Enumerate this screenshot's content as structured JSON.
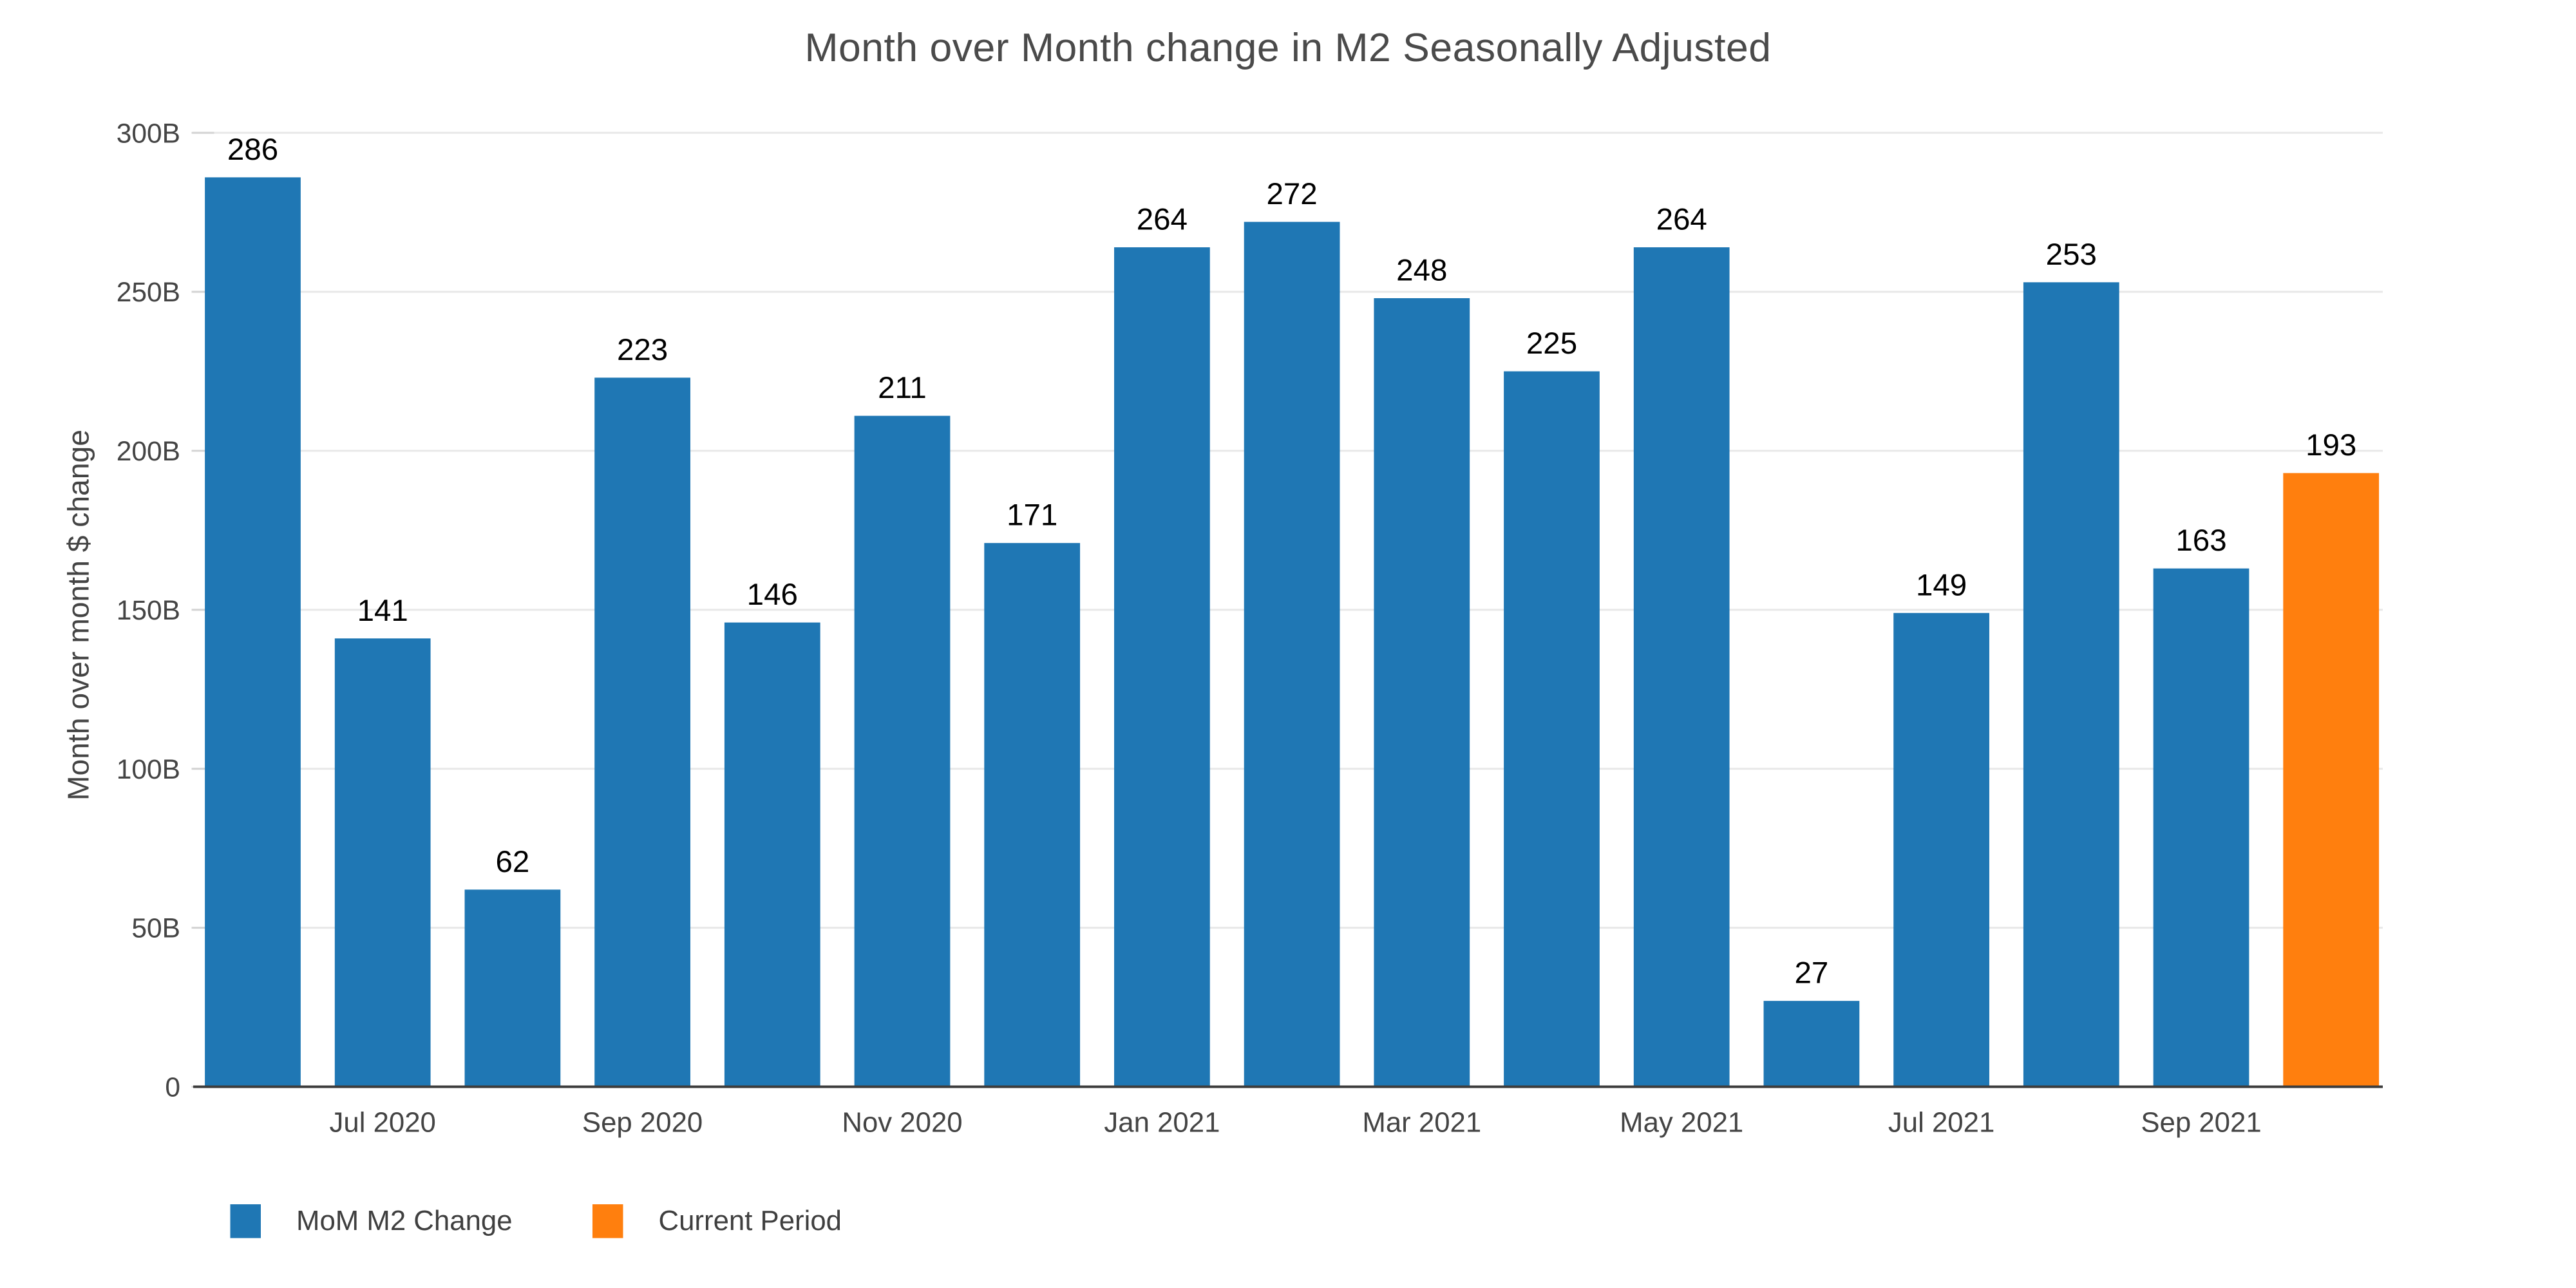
{
  "chart_data": {
    "type": "bar",
    "title": "Month over Month change in M2 Seasonally Adjusted",
    "ylabel": "Month over month $ change",
    "xlabel": "",
    "ylim": [
      0,
      300
    ],
    "grid": true,
    "legend_position": "bottom-left",
    "y_ticks": [
      {
        "value": 0,
        "label": "0"
      },
      {
        "value": 50,
        "label": "50B"
      },
      {
        "value": 100,
        "label": "100B"
      },
      {
        "value": 150,
        "label": "150B"
      },
      {
        "value": 200,
        "label": "200B"
      },
      {
        "value": 250,
        "label": "250B"
      },
      {
        "value": 300,
        "label": "300B"
      }
    ],
    "bars": [
      {
        "value": 286,
        "label": "286",
        "role": "default"
      },
      {
        "value": 141,
        "label": "141",
        "role": "default"
      },
      {
        "value": 62,
        "label": "62",
        "role": "default"
      },
      {
        "value": 223,
        "label": "223",
        "role": "default"
      },
      {
        "value": 146,
        "label": "146",
        "role": "default"
      },
      {
        "value": 211,
        "label": "211",
        "role": "default"
      },
      {
        "value": 171,
        "label": "171",
        "role": "default"
      },
      {
        "value": 264,
        "label": "264",
        "role": "default"
      },
      {
        "value": 272,
        "label": "272",
        "role": "default"
      },
      {
        "value": 248,
        "label": "248",
        "role": "default"
      },
      {
        "value": 225,
        "label": "225",
        "role": "default"
      },
      {
        "value": 264,
        "label": "264",
        "role": "default"
      },
      {
        "value": 27,
        "label": "27",
        "role": "default"
      },
      {
        "value": 149,
        "label": "149",
        "role": "default"
      },
      {
        "value": 253,
        "label": "253",
        "role": "default"
      },
      {
        "value": 163,
        "label": "163",
        "role": "default"
      },
      {
        "value": 193,
        "label": "193",
        "role": "current"
      }
    ],
    "current_period_index": 16,
    "x_ticks": [
      {
        "label": "Jul 2020",
        "bar_index": 1
      },
      {
        "label": "Sep 2020",
        "bar_index": 3
      },
      {
        "label": "Nov 2020",
        "bar_index": 5
      },
      {
        "label": "Jan 2021",
        "bar_index": 7
      },
      {
        "label": "Mar 2021",
        "bar_index": 9
      },
      {
        "label": "May 2021",
        "bar_index": 11
      },
      {
        "label": "Jul 2021",
        "bar_index": 13
      },
      {
        "label": "Sep 2021",
        "bar_index": 15
      }
    ],
    "legend": [
      {
        "label": "MoM M2 Change",
        "color": "#1f77b4"
      },
      {
        "label": "Current Period",
        "color": "#ff7f0e"
      }
    ],
    "colors": {
      "bar_default": "#1f77b4",
      "bar_current": "#ff7f0e",
      "grid": "#e8e8e8",
      "tick": "#d4d4d4",
      "axis_line": "#3d3d3d",
      "value_text": "#000000",
      "axis_text": "#444444",
      "title_text": "#4a4a4a"
    }
  }
}
